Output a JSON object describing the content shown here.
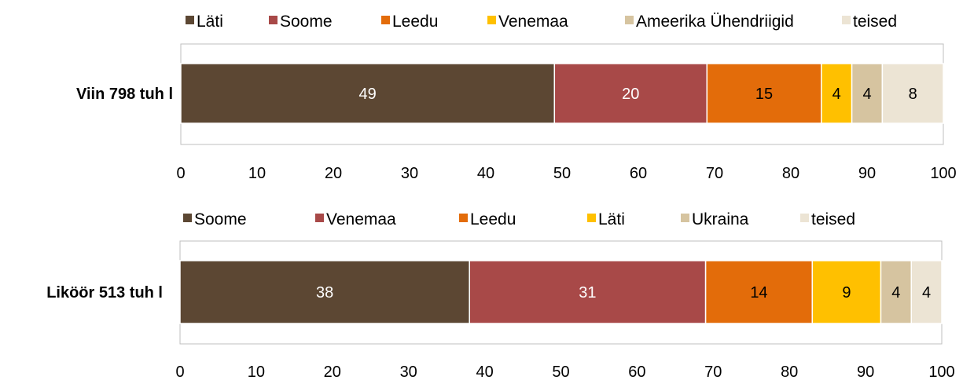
{
  "chart_data": [
    {
      "type": "bar",
      "orientation": "horizontal",
      "stacked": true,
      "categories": [
        "Viin 798 tuh l"
      ],
      "series": [
        {
          "name": "Läti",
          "values": [
            49
          ],
          "color": "#5c4733",
          "label_color": "#ffffff"
        },
        {
          "name": "Soome",
          "values": [
            20
          ],
          "color": "#a84948",
          "label_color": "#ffffff"
        },
        {
          "name": "Leedu",
          "values": [
            15
          ],
          "color": "#e36c0a",
          "label_color": "#000000"
        },
        {
          "name": "Venemaa",
          "values": [
            4
          ],
          "color": "#ffc000",
          "label_color": "#000000"
        },
        {
          "name": "Ameerika Ühendriigid",
          "values": [
            4
          ],
          "color": "#d6c4a0",
          "label_color": "#000000"
        },
        {
          "name": "teised",
          "values": [
            8
          ],
          "color": "#ece4d4",
          "label_color": "#000000"
        }
      ],
      "xlim": [
        0,
        100
      ],
      "ticks": [
        "0",
        "10",
        "20",
        "30",
        "40",
        "50",
        "60",
        "70",
        "80",
        "90",
        "100"
      ],
      "legend": "top",
      "grid": false
    },
    {
      "type": "bar",
      "orientation": "horizontal",
      "stacked": true,
      "categories": [
        "Liköör 513 tuh l"
      ],
      "series": [
        {
          "name": "Soome",
          "values": [
            38
          ],
          "color": "#5c4733",
          "label_color": "#ffffff"
        },
        {
          "name": "Venemaa",
          "values": [
            31
          ],
          "color": "#a84948",
          "label_color": "#ffffff"
        },
        {
          "name": "Leedu",
          "values": [
            14
          ],
          "color": "#e36c0a",
          "label_color": "#000000"
        },
        {
          "name": "Läti",
          "values": [
            9
          ],
          "color": "#ffc000",
          "label_color": "#000000"
        },
        {
          "name": "Ukraina",
          "values": [
            4
          ],
          "color": "#d6c4a0",
          "label_color": "#000000"
        },
        {
          "name": "teised",
          "values": [
            4
          ],
          "color": "#ece4d4",
          "label_color": "#000000"
        }
      ],
      "xlim": [
        0,
        100
      ],
      "ticks": [
        "0",
        "10",
        "20",
        "30",
        "40",
        "50",
        "60",
        "70",
        "80",
        "90",
        "100"
      ],
      "legend": "top",
      "grid": false
    }
  ]
}
